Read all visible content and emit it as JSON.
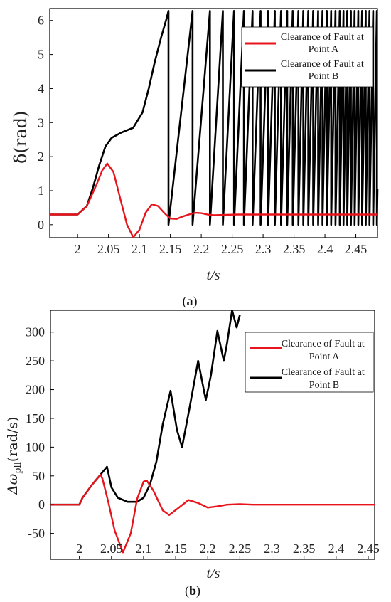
{
  "chart_data": [
    {
      "type": "line",
      "panel_label": "a",
      "xlabel": "t/s",
      "ylabel": "δ(rad)",
      "xlim": [
        1.955,
        2.485
      ],
      "ylim": [
        -0.38,
        6.35
      ],
      "xticks": [
        "2",
        "2.05",
        "2.1",
        "2.15",
        "2.2",
        "2.25",
        "2.3",
        "2.35",
        "2.4",
        "2.45"
      ],
      "yticks": [
        "0",
        "1",
        "2",
        "3",
        "4",
        "5",
        "6"
      ],
      "grid": false,
      "legend": "top-right",
      "series": [
        {
          "name": "Clearance of Fault at Point A",
          "color": "#e8141b",
          "x": [
            1.955,
            2.0,
            2.015,
            2.03,
            2.04,
            2.048,
            2.058,
            2.07,
            2.08,
            2.09,
            2.1,
            2.11,
            2.12,
            2.13,
            2.14,
            2.15,
            2.16,
            2.17,
            2.18,
            2.19,
            2.2,
            2.21,
            2.22,
            2.24,
            2.26,
            2.28,
            2.3,
            2.35,
            2.4,
            2.485
          ],
          "y": [
            0.3,
            0.3,
            0.55,
            1.15,
            1.6,
            1.8,
            1.55,
            0.7,
            0.0,
            -0.37,
            -0.15,
            0.35,
            0.6,
            0.55,
            0.35,
            0.18,
            0.17,
            0.24,
            0.3,
            0.35,
            0.34,
            0.3,
            0.28,
            0.29,
            0.3,
            0.3,
            0.3,
            0.3,
            0.3,
            0.3
          ]
        },
        {
          "name": "Clearance of Fault at Point B",
          "color": "#000000",
          "x": [
            1.955,
            2.0,
            2.015,
            2.025,
            2.035,
            2.045,
            2.055,
            2.07,
            2.09,
            2.105,
            2.115,
            2.125,
            2.135,
            2.143,
            2.147
          ],
          "y": [
            0.3,
            0.3,
            0.55,
            1.1,
            1.75,
            2.3,
            2.55,
            2.7,
            2.85,
            3.3,
            4.0,
            4.8,
            5.5,
            6.0,
            6.28
          ],
          "sawtooth_wraps_at_t": [
            2.147,
            2.186,
            2.214,
            2.235,
            2.253,
            2.269,
            2.283,
            2.296,
            2.308,
            2.319,
            2.329,
            2.339,
            2.348,
            2.357,
            2.365,
            2.373,
            2.381,
            2.389,
            2.396,
            2.403,
            2.41,
            2.417,
            2.424,
            2.43,
            2.436,
            2.442,
            2.448,
            2.454,
            2.46,
            2.466,
            2.472,
            2.478,
            2.484
          ],
          "sawtooth_range": [
            0,
            6.28
          ]
        }
      ]
    },
    {
      "type": "line",
      "panel_label": "b",
      "xlabel": "t/s",
      "ylabel": "Δω",
      "ylabel_subscript": "pll",
      "ylabel_unit": "(rad/s)",
      "xlim": [
        1.955,
        2.46
      ],
      "ylim": [
        -95,
        338
      ],
      "xticks": [
        "2",
        "2.05",
        "2.1",
        "2.15",
        "2.2",
        "2.25",
        "2.3",
        "2.35",
        "2.4",
        "2.45"
      ],
      "yticks": [
        "-50",
        "0",
        "50",
        "100",
        "150",
        "200",
        "250",
        "300"
      ],
      "grid": false,
      "legend": "top-right",
      "series": [
        {
          "name": "Clearance of Fault at Point A",
          "color": "#e8141b",
          "x": [
            1.955,
            2.0,
            2.005,
            2.02,
            2.033,
            2.036,
            2.045,
            2.055,
            2.068,
            2.08,
            2.09,
            2.1,
            2.105,
            2.115,
            2.13,
            2.14,
            2.155,
            2.17,
            2.185,
            2.2,
            2.215,
            2.23,
            2.25,
            2.27,
            2.3,
            2.35,
            2.4,
            2.46
          ],
          "y": [
            0,
            0,
            12,
            35,
            52,
            45,
            5,
            -45,
            -83,
            -50,
            10,
            40,
            42,
            25,
            -10,
            -18,
            -5,
            8,
            3,
            -5,
            -3,
            0,
            1,
            0,
            0,
            0,
            0,
            0
          ]
        },
        {
          "name": "Clearance of Fault at Point B",
          "color": "#000000",
          "x": [
            1.955,
            2.0,
            2.005,
            2.02,
            2.035,
            2.043,
            2.05,
            2.06,
            2.075,
            2.09,
            2.1,
            2.11,
            2.12,
            2.13,
            2.142,
            2.152,
            2.16,
            2.172,
            2.185,
            2.197,
            2.205,
            2.215,
            2.225,
            2.23,
            2.238,
            2.245,
            2.25
          ],
          "y": [
            0,
            0,
            12,
            35,
            55,
            66,
            30,
            12,
            5,
            5,
            12,
            35,
            75,
            140,
            198,
            130,
            100,
            170,
            250,
            182,
            225,
            302,
            250,
            280,
            338,
            308,
            330
          ]
        }
      ]
    }
  ]
}
